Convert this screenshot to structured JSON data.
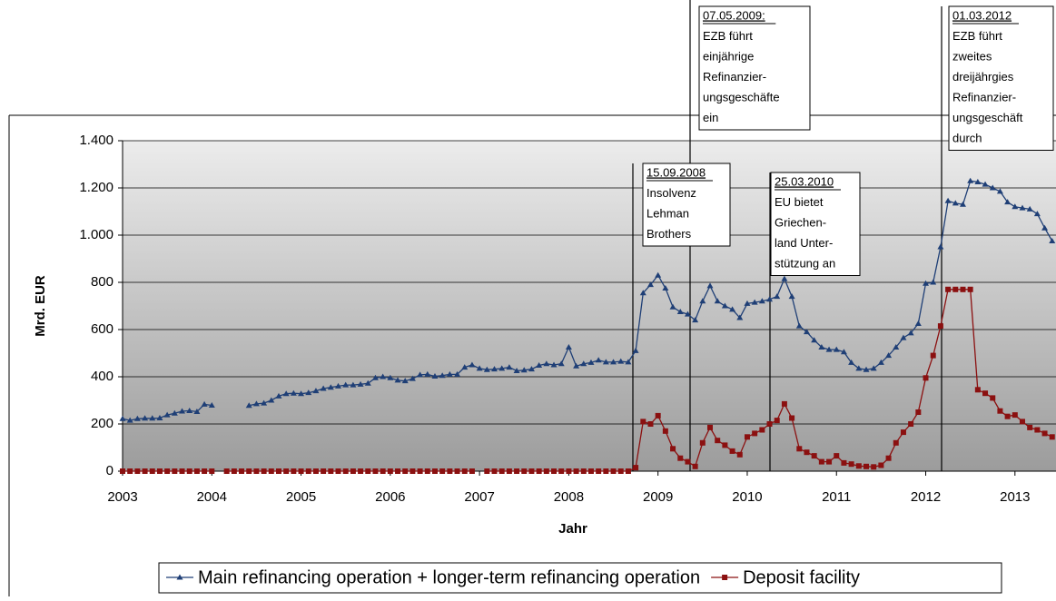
{
  "chart_data": {
    "type": "line",
    "xlabel": "Jahr",
    "ylabel": "Mrd. EUR",
    "categories": [
      "2003",
      null,
      null,
      null,
      null,
      null,
      null,
      null,
      null,
      null,
      null,
      null,
      "2004",
      null,
      null,
      null,
      null,
      null,
      null,
      null,
      null,
      null,
      null,
      null,
      "2005",
      null,
      null,
      null,
      null,
      null,
      null,
      null,
      null,
      null,
      null,
      null,
      "2006",
      null,
      null,
      null,
      null,
      null,
      null,
      null,
      null,
      null,
      null,
      null,
      "2007",
      null,
      null,
      null,
      null,
      null,
      null,
      null,
      null,
      null,
      null,
      null,
      "2008",
      null,
      null,
      null,
      null,
      null,
      null,
      null,
      null,
      null,
      null,
      null,
      "2009",
      null,
      null,
      null,
      null,
      null,
      null,
      null,
      null,
      null,
      null,
      null,
      "2010",
      null,
      null,
      null,
      null,
      null,
      null,
      null,
      null,
      null,
      null,
      null,
      "2011",
      null,
      null,
      null,
      null,
      null,
      null,
      null,
      null,
      null,
      null,
      null,
      "2012",
      null,
      null,
      null,
      null,
      null,
      null,
      null,
      null,
      null,
      null,
      null,
      "2013",
      null,
      null,
      null,
      null,
      null
    ],
    "series": [
      {
        "name": "Main refinancing operation + longer-term refinancing operation",
        "color": "#1f3f76",
        "marker": "triangle",
        "values": [
          222,
          215,
          222,
          224,
          224,
          225,
          238,
          245,
          254,
          256,
          252,
          283,
          279,
          null,
          null,
          null,
          null,
          278,
          285,
          288,
          300,
          318,
          328,
          330,
          328,
          332,
          340,
          350,
          355,
          360,
          365,
          365,
          368,
          372,
          395,
          400,
          395,
          385,
          382,
          392,
          408,
          410,
          402,
          405,
          410,
          410,
          440,
          450,
          435,
          430,
          432,
          435,
          440,
          425,
          428,
          432,
          448,
          455,
          450,
          455,
          525,
          445,
          455,
          460,
          470,
          462,
          462,
          465,
          462,
          510,
          755,
          790,
          830,
          775,
          695,
          675,
          665,
          640,
          720,
          785,
          720,
          700,
          685,
          650,
          710,
          715,
          720,
          728,
          740,
          815,
          740,
          615,
          590,
          555,
          525,
          515,
          515,
          505,
          460,
          435,
          430,
          435,
          460,
          490,
          525,
          565,
          585,
          625,
          795,
          800,
          950,
          1145,
          1135,
          1130,
          1230,
          1225,
          1215,
          1200,
          1185,
          1140,
          1120,
          1115,
          1110,
          1090,
          1030,
          975
        ]
      },
      {
        "name": "Deposit facility",
        "color": "#8b1010",
        "marker": "square",
        "values": [
          0,
          0,
          0,
          0,
          0,
          0,
          0,
          0,
          0,
          0,
          0,
          0,
          0,
          null,
          0,
          0,
          0,
          0,
          0,
          0,
          0,
          0,
          0,
          0,
          0,
          0,
          0,
          0,
          0,
          0,
          0,
          0,
          0,
          0,
          0,
          0,
          0,
          0,
          0,
          0,
          0,
          0,
          0,
          0,
          0,
          0,
          0,
          0,
          null,
          0,
          0,
          0,
          0,
          0,
          0,
          0,
          0,
          0,
          0,
          0,
          0,
          0,
          0,
          0,
          0,
          0,
          0,
          0,
          0,
          15,
          210,
          200,
          235,
          170,
          95,
          55,
          40,
          20,
          120,
          185,
          130,
          110,
          85,
          70,
          145,
          160,
          175,
          200,
          215,
          285,
          225,
          95,
          80,
          65,
          40,
          40,
          65,
          35,
          30,
          22,
          20,
          18,
          25,
          55,
          120,
          165,
          200,
          250,
          395,
          490,
          615,
          770,
          770,
          770,
          770,
          345,
          330,
          310,
          255,
          232,
          238,
          210,
          185,
          175,
          160,
          145
        ]
      }
    ],
    "ylim": [
      0,
      1400
    ],
    "yticks": [
      0,
      200,
      400,
      600,
      800,
      {
        "value": 1000,
        "label": "1.000"
      },
      {
        "value": 1200,
        "label": "1.200"
      },
      {
        "value": 1400,
        "label": "1.400"
      }
    ],
    "grid": true,
    "legend": "bottom",
    "annotations": [
      {
        "date": "15.09.2008",
        "lines": [
          "Insolvenz",
          "Lehman",
          "Brothers"
        ]
      },
      {
        "date": "07.05.2009:",
        "lines": [
          "EZB führt",
          "einjährige",
          "Refinanzier-",
          "ungsgeschäfte",
          "ein"
        ]
      },
      {
        "date": "25.03.2010",
        "lines": [
          "EU bietet",
          "Griechen-",
          "land Unter-",
          "stützung an"
        ]
      },
      {
        "date": "01.03.2012",
        "lines": [
          "EZB führt",
          "zweites",
          "dreijährgies",
          "Refinanzier-",
          "ungsgeschäft",
          "durch"
        ]
      }
    ]
  }
}
